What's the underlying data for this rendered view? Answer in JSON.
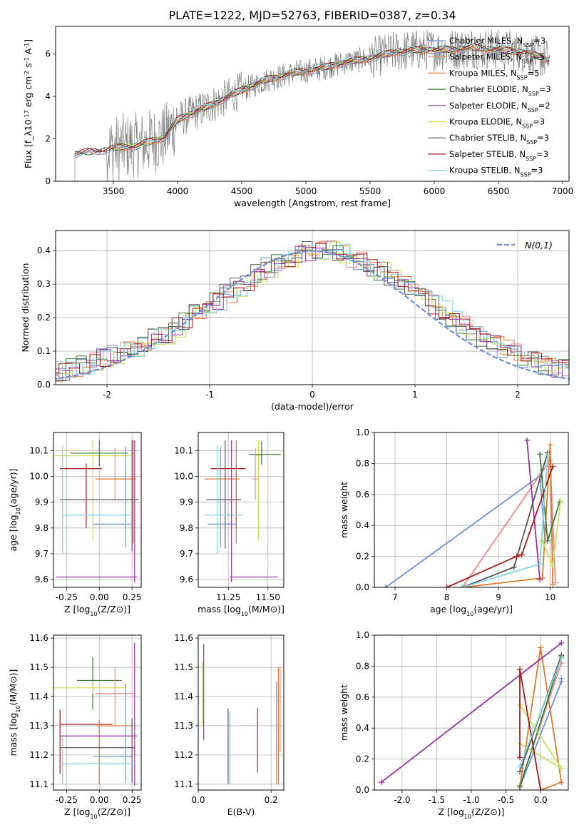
{
  "title": "PLATE=1222, MJD=52763, FIBERID=0387, z=0.34",
  "colors": {
    "chabrier_miles": "#6a8fd6",
    "salpeter_miles": "#f08a8a",
    "kroupa_miles": "#e0782a",
    "chabrier_elodie": "#3a7a3a",
    "salpeter_elodie": "#9a2fa8",
    "kroupa_elodie": "#c8e05a",
    "chabrier_stelib": "#555555",
    "salpeter_stelib": "#a81b1b",
    "kroupa_stelib": "#7ed3de",
    "data_spectrum": "#808080",
    "gauss": "#6a8fd6",
    "grid": "#b0b0b0"
  },
  "chart_data": [
    {
      "id": "spectrum",
      "type": "line",
      "xlabel": "wavelength [Angstrom, rest frame]",
      "ylabel": "Flux [f_λ10^-17 erg cm^-2 s^-1 A^-1]",
      "xlim": [
        3050,
        7050
      ],
      "ylim": [
        0,
        7.3
      ],
      "xticks": [
        3500,
        4000,
        4500,
        5000,
        5500,
        6000,
        6500,
        7000
      ],
      "yticks": [
        0,
        2,
        4,
        6
      ],
      "legend": [
        {
          "key": "chabrier_miles",
          "text": "Chabrier MILES, N_SSP=3"
        },
        {
          "key": "salpeter_miles",
          "text": "Salpeter MILES, N_SSP=5"
        },
        {
          "key": "kroupa_miles",
          "text": "Kroupa MILES, N_SSP=5"
        },
        {
          "key": "chabrier_elodie",
          "text": "Chabrier ELODIE, N_SSP=3"
        },
        {
          "key": "salpeter_elodie",
          "text": "Salpeter ELODIE, N_SSP=2"
        },
        {
          "key": "kroupa_elodie",
          "text": "Kroupa ELODIE, N_SSP=3"
        },
        {
          "key": "chabrier_stelib",
          "text": "Chabrier STELIB, N_SSP=3"
        },
        {
          "key": "salpeter_stelib",
          "text": "Salpeter STELIB, N_SSP=3"
        },
        {
          "key": "kroupa_stelib",
          "text": "Kroupa STELIB, N_SSP=3"
        }
      ],
      "continuum": {
        "x": [
          3200,
          3400,
          3550,
          3700,
          3900,
          4000,
          4150,
          4300,
          4500,
          4700,
          4900,
          5100,
          5300,
          5500,
          5700,
          5900,
          6100,
          6300,
          6500,
          6700,
          6900
        ],
        "y": [
          1.3,
          1.45,
          1.6,
          1.7,
          2.1,
          2.9,
          3.3,
          3.7,
          4.3,
          4.8,
          5.1,
          5.3,
          5.6,
          5.8,
          6.1,
          6.2,
          6.2,
          6.3,
          6.2,
          6.1,
          5.7
        ]
      }
    },
    {
      "id": "residuals",
      "type": "step",
      "xlabel": "(data-model)/error",
      "ylabel": "Normed distribution",
      "xlim": [
        -2.5,
        2.5
      ],
      "ylim": [
        0,
        0.46
      ],
      "xticks": [
        -2,
        -1,
        0,
        1,
        2
      ],
      "yticks": [
        0.0,
        0.1,
        0.2,
        0.3,
        0.4
      ],
      "legend": "N(0,1)",
      "bin_width": 0.1,
      "base_values": [
        0.02,
        0.02,
        0.03,
        0.03,
        0.04,
        0.04,
        0.05,
        0.06,
        0.07,
        0.08,
        0.09,
        0.1,
        0.11,
        0.12,
        0.14,
        0.15,
        0.17,
        0.19,
        0.21,
        0.23,
        0.25,
        0.27,
        0.29,
        0.31,
        0.33,
        0.35,
        0.36,
        0.38,
        0.39,
        0.4,
        0.4,
        0.4,
        0.39,
        0.38,
        0.37,
        0.35,
        0.34,
        0.32,
        0.3,
        0.28,
        0.26,
        0.24,
        0.22,
        0.2,
        0.18,
        0.16,
        0.14,
        0.13,
        0.11,
        0.1,
        0.08,
        0.07,
        0.06,
        0.05,
        0.05,
        0.04,
        0.03,
        0.03,
        0.02,
        0.02
      ]
    },
    {
      "id": "age_vs_z",
      "type": "errorbar",
      "xlabel": "Z [log10(Z/Z⊙)]",
      "ylabel": "age  [log10(age/yr)]",
      "xlim": [
        -0.35,
        0.32
      ],
      "ylim": [
        9.57,
        10.17
      ],
      "xticks": [
        -0.25,
        0.0,
        0.25
      ],
      "yticks": [
        9.6,
        9.7,
        9.8,
        9.9,
        10.0,
        10.1
      ],
      "points": [
        {
          "c": "kroupa_elodie",
          "x": -0.05,
          "xe": [
            0.3,
            0.3
          ],
          "y": 10.08,
          "ye": [
            0.33,
            0.06
          ]
        },
        {
          "c": "chabrier_elodie",
          "x": 0.0,
          "xe": [
            0.22,
            0.22
          ],
          "y": 10.09,
          "ye": [
            0.05,
            0.05
          ]
        },
        {
          "c": "salpeter_stelib",
          "x": -0.1,
          "xe": [
            0.2,
            0.12
          ],
          "y": 10.03,
          "ye": [
            0.23,
            0.02
          ]
        },
        {
          "c": "salpeter_miles",
          "x": 0.12,
          "xe": [
            0.15,
            0.15
          ],
          "y": 9.99,
          "ye": [
            0.08,
            0.12
          ]
        },
        {
          "c": "kroupa_miles",
          "x": 0.26,
          "xe": [
            0.28,
            0.02
          ],
          "y": 9.99,
          "ye": [
            0.25,
            0.15
          ]
        },
        {
          "c": "chabrier_stelib",
          "x": 0.25,
          "xe": [
            0.55,
            0.05
          ],
          "y": 9.91,
          "ye": [
            0.2,
            0.23
          ]
        },
        {
          "c": "kroupa_stelib",
          "x": -0.28,
          "xe": [
            0.0,
            0.52
          ],
          "y": 9.85,
          "ye": [
            0.15,
            0.27
          ]
        },
        {
          "c": "chabrier_miles",
          "x": 0.2,
          "xe": [
            0.25,
            0.05
          ],
          "y": 9.815,
          "ye": [
            0.09,
            0.3
          ]
        },
        {
          "c": "salpeter_elodie",
          "x": 0.27,
          "xe": [
            0.6,
            0.02
          ],
          "y": 9.61,
          "ye": [
            0.02,
            0.53
          ]
        }
      ]
    },
    {
      "id": "age_vs_mass",
      "type": "errorbar",
      "xlabel": "mass [log10(M/M⊙)]",
      "ylabel": "",
      "xlim": [
        11.06,
        11.6
      ],
      "ylim": [
        9.57,
        10.17
      ],
      "xticks": [
        11.25,
        11.5
      ],
      "yticks": [
        9.6,
        9.7,
        9.8,
        9.9,
        10.0,
        10.1
      ],
      "points": [
        {
          "c": "kroupa_elodie",
          "x": 11.44,
          "xe": [
            0.02,
            0.02
          ],
          "y": 10.08,
          "ye": [
            0.33,
            0.06
          ]
        },
        {
          "c": "chabrier_elodie",
          "x": 11.46,
          "xe": [
            0.08,
            0.12
          ],
          "y": 10.085,
          "ye": [
            0.04,
            0.05
          ]
        },
        {
          "c": "salpeter_stelib",
          "x": 11.3,
          "xe": [
            0.16,
            0.06
          ],
          "y": 10.03,
          "ye": [
            0.23,
            0.02
          ]
        },
        {
          "c": "salpeter_miles",
          "x": 11.42,
          "xe": [
            0.02,
            0.02
          ],
          "y": 9.99,
          "ye": [
            0.08,
            0.12
          ]
        },
        {
          "c": "kroupa_miles",
          "x": 11.3,
          "xe": [
            0.2,
            0.02
          ],
          "y": 9.99,
          "ye": [
            0.25,
            0.15
          ]
        },
        {
          "c": "chabrier_stelib",
          "x": 11.23,
          "xe": [
            0.12,
            0.1
          ],
          "y": 9.91,
          "ye": [
            0.19,
            0.23
          ]
        },
        {
          "c": "kroupa_stelib",
          "x": 11.18,
          "xe": [
            0.08,
            0.16
          ],
          "y": 9.85,
          "ye": [
            0.15,
            0.27
          ]
        },
        {
          "c": "chabrier_miles",
          "x": 11.2,
          "xe": [
            0.08,
            0.1
          ],
          "y": 9.815,
          "ye": [
            0.09,
            0.3
          ]
        },
        {
          "c": "salpeter_elodie",
          "x": 11.27,
          "xe": [
            0.01,
            0.29
          ],
          "y": 9.61,
          "ye": [
            0.02,
            0.53
          ]
        }
      ]
    },
    {
      "id": "weight_vs_age",
      "type": "line",
      "xlabel": "age  [log10(age/yr)]",
      "ylabel": "mass weight",
      "xlim": [
        6.6,
        10.35
      ],
      "ylim": [
        0,
        1.0
      ],
      "xticks": [
        7,
        8,
        9,
        10
      ],
      "yticks": [
        0.0,
        0.2,
        0.4,
        0.6,
        0.8,
        1.0
      ],
      "series": [
        {
          "c": "chabrier_miles",
          "x": [
            6.82,
            9.8,
            9.9
          ],
          "y": [
            0.0,
            0.72,
            0.3
          ]
        },
        {
          "c": "salpeter_miles",
          "x": [
            8.3,
            10.0,
            10.1
          ],
          "y": [
            0.0,
            0.82,
            0.03
          ]
        },
        {
          "c": "kroupa_miles",
          "x": [
            8.3,
            9.85,
            10.0,
            10.05
          ],
          "y": [
            0.0,
            0.06,
            0.92,
            0.02
          ]
        },
        {
          "c": "chabrier_elodie",
          "x": [
            9.8,
            9.95,
            10.18
          ],
          "y": [
            0.86,
            0.3,
            0.55
          ]
        },
        {
          "c": "salpeter_elodie",
          "x": [
            9.55,
            9.8
          ],
          "y": [
            0.95,
            0.05
          ]
        },
        {
          "c": "kroupa_elodie",
          "x": [
            9.85,
            10.05,
            10.2
          ],
          "y": [
            0.3,
            0.14,
            0.56
          ]
        },
        {
          "c": "chabrier_stelib",
          "x": [
            8.3,
            9.3,
            9.95
          ],
          "y": [
            0.0,
            0.13,
            0.87
          ]
        },
        {
          "c": "salpeter_stelib",
          "x": [
            8.0,
            9.35,
            9.45,
            10.05
          ],
          "y": [
            0.0,
            0.2,
            0.21,
            0.78
          ]
        },
        {
          "c": "kroupa_stelib",
          "x": [
            8.3,
            9.8,
            9.95
          ],
          "y": [
            0.0,
            0.15,
            0.85
          ]
        }
      ]
    },
    {
      "id": "mass_vs_z",
      "type": "errorbar",
      "xlabel": "Z [log10(Z/Z⊙)]",
      "ylabel": "mass [log10(M/M⊙)]",
      "xlim": [
        -0.35,
        0.32
      ],
      "ylim": [
        11.08,
        11.61
      ],
      "xticks": [
        -0.25,
        0.0,
        0.25
      ],
      "yticks": [
        11.1,
        11.2,
        11.3,
        11.4,
        11.5,
        11.6
      ],
      "points": [
        {
          "c": "chabrier_elodie",
          "x": -0.05,
          "xe": [
            0.12,
            0.22
          ],
          "y": 11.455,
          "ye": [
            0.1,
            0.08
          ]
        },
        {
          "c": "kroupa_elodie",
          "x": -0.05,
          "xe": [
            0.3,
            0.25
          ],
          "y": 11.43,
          "ye": [
            0.02,
            0.02
          ]
        },
        {
          "c": "salpeter_miles",
          "x": 0.12,
          "xe": [
            0.15,
            0.15
          ],
          "y": 11.41,
          "ye": [
            0.11,
            0.09
          ]
        },
        {
          "c": "salpeter_stelib",
          "x": -0.3,
          "xe": [
            0.0,
            0.4
          ],
          "y": 11.305,
          "ye": [
            0.17,
            0.05
          ]
        },
        {
          "c": "kroupa_miles",
          "x": 0.0,
          "xe": [
            0.02,
            0.25
          ],
          "y": 11.3,
          "ye": [
            0.2,
            0.02
          ]
        },
        {
          "c": "salpeter_elodie",
          "x": 0.27,
          "xe": [
            0.57,
            0.02
          ],
          "y": 11.265,
          "ye": [
            0.17,
            0.32
          ]
        },
        {
          "c": "chabrier_stelib",
          "x": 0.25,
          "xe": [
            0.55,
            0.02
          ],
          "y": 11.225,
          "ye": [
            0.12,
            0.1
          ]
        },
        {
          "c": "chabrier_miles",
          "x": 0.2,
          "xe": [
            0.25,
            0.05
          ],
          "y": 11.195,
          "ye": [
            0.09,
            0.25
          ]
        },
        {
          "c": "kroupa_stelib",
          "x": -0.28,
          "xe": [
            0.0,
            0.55
          ],
          "y": 11.17,
          "ye": [
            0.07,
            0.1
          ]
        }
      ]
    },
    {
      "id": "mass_vs_ebv",
      "type": "errorbar",
      "xlabel": "E(B-V)",
      "ylabel": "",
      "xlim": [
        0.0,
        0.235
      ],
      "ylim": [
        11.08,
        11.61
      ],
      "xticks": [
        0.0,
        0.2
      ],
      "yticks": [
        11.1,
        11.2,
        11.3,
        11.4,
        11.5,
        11.6
      ],
      "points": [
        {
          "c": "salpeter_elodie",
          "x": 0.015,
          "xe": [
            0,
            0
          ],
          "y": 11.45,
          "ye": [
            0.2,
            0.13
          ]
        },
        {
          "c": "kroupa_elodie",
          "x": 0.012,
          "xe": [
            0,
            0
          ],
          "y": 11.4,
          "ye": [
            0.1,
            0.12
          ]
        },
        {
          "c": "chabrier_stelib",
          "x": 0.082,
          "xe": [
            0,
            0
          ],
          "y": 11.23,
          "ye": [
            0.13,
            0.13
          ]
        },
        {
          "c": "kroupa_stelib",
          "x": 0.086,
          "xe": [
            0,
            0
          ],
          "y": 11.22,
          "ye": [
            0.12,
            0.13
          ]
        },
        {
          "c": "salpeter_stelib",
          "x": 0.163,
          "xe": [
            0,
            0
          ],
          "y": 11.22,
          "ye": [
            0.08,
            0.14
          ]
        },
        {
          "c": "chabrier_miles",
          "x": 0.215,
          "xe": [
            0,
            0
          ],
          "y": 11.3,
          "ye": [
            0.2,
            0.15
          ]
        },
        {
          "c": "kroupa_miles",
          "x": 0.22,
          "xe": [
            0,
            0
          ],
          "y": 11.3,
          "ye": [
            0.2,
            0.2
          ]
        },
        {
          "c": "salpeter_miles",
          "x": 0.225,
          "xe": [
            0,
            0
          ],
          "y": 11.36,
          "ye": [
            0.15,
            0.14
          ]
        }
      ]
    },
    {
      "id": "weight_vs_z",
      "type": "line",
      "xlabel": "Z [log10(Z/Z⊙)]",
      "ylabel": "mass weight",
      "xlim": [
        -2.4,
        0.4
      ],
      "ylim": [
        0,
        1.0
      ],
      "xticks": [
        -2.0,
        -1.5,
        -1.0,
        -0.5,
        0.0
      ],
      "yticks": [
        0.0,
        0.2,
        0.4,
        0.6,
        0.8,
        1.0
      ],
      "series": [
        {
          "c": "chabrier_miles",
          "x": [
            -0.3,
            0.3,
            0.3
          ],
          "y": [
            0.02,
            0.7,
            0.72
          ]
        },
        {
          "c": "salpeter_miles",
          "x": [
            -0.3,
            0.3
          ],
          "y": [
            0.03,
            0.82
          ]
        },
        {
          "c": "kroupa_miles",
          "x": [
            -0.3,
            0.0,
            0.3,
            0.0
          ],
          "y": [
            0.02,
            0.92,
            0.05,
            0.0
          ]
        },
        {
          "c": "chabrier_elodie",
          "x": [
            -0.3,
            0.3
          ],
          "y": [
            0.02,
            0.86
          ]
        },
        {
          "c": "salpeter_elodie",
          "x": [
            -2.3,
            0.3
          ],
          "y": [
            0.05,
            0.95
          ]
        },
        {
          "c": "kroupa_elodie",
          "x": [
            -0.3,
            0.3,
            -0.3
          ],
          "y": [
            0.55,
            0.14,
            0.3
          ]
        },
        {
          "c": "chabrier_stelib",
          "x": [
            -0.3,
            0.3
          ],
          "y": [
            0.12,
            0.87
          ]
        },
        {
          "c": "salpeter_stelib",
          "x": [
            -0.3,
            -0.3,
            0.0
          ],
          "y": [
            0.21,
            0.78,
            0.0
          ]
        },
        {
          "c": "kroupa_stelib",
          "x": [
            -0.3,
            0.3
          ],
          "y": [
            0.15,
            0.85
          ]
        }
      ]
    }
  ]
}
